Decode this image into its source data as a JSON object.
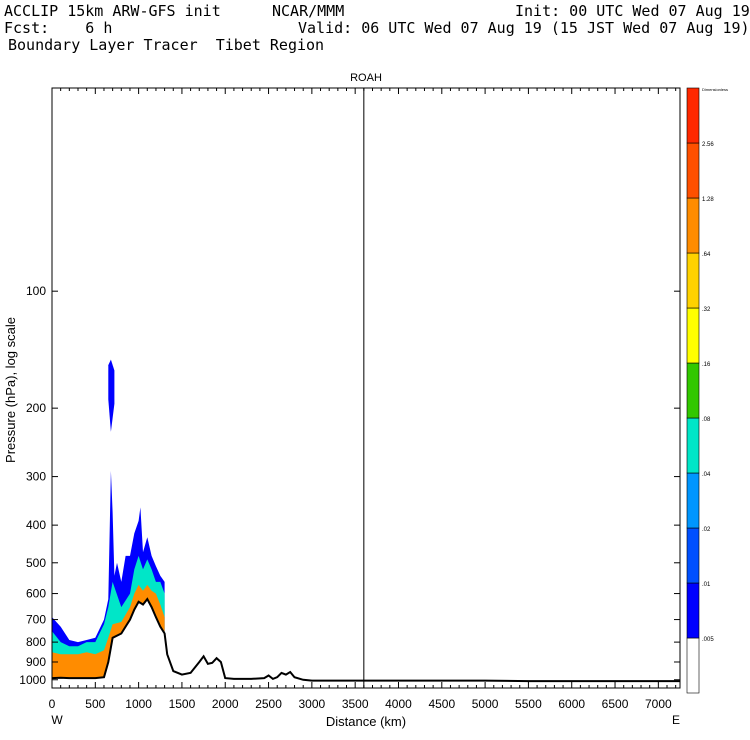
{
  "header": {
    "model_line": "ACCLIP 15km ARW-GFS init",
    "org": "NCAR/MMM",
    "init": "Init: 00 UTC Wed 07 Aug 19",
    "fcst_line": "Fcst:    6 h",
    "valid": "Valid: 06 UTC Wed 07 Aug 19 (15 JST Wed 07 Aug 19)",
    "product": "Boundary Layer Tracer  Tibet Region"
  },
  "chart_data": {
    "type": "area",
    "panel_label": "ROAH",
    "xlabel": "Distance (km)",
    "ylabel": "Pressure (hPa), log scale",
    "x_ticks": [
      0,
      500,
      1000,
      1500,
      2000,
      2500,
      3000,
      3500,
      4000,
      4500,
      5000,
      5500,
      6000,
      6500,
      7000
    ],
    "x_range": [
      0,
      7250
    ],
    "y_ticks": [
      100,
      200,
      300,
      400,
      500,
      600,
      700,
      800,
      900,
      1000
    ],
    "y_range": [
      30,
      1050
    ],
    "y_scale": "log",
    "left_end_label": "W",
    "right_end_label": "E",
    "vertical_line_x": 3600,
    "colorbar": {
      "top_label": "Dimensionless",
      "levels": [
        ".005",
        ".01",
        ".02",
        ".04",
        ".08",
        ".16",
        ".32",
        ".64",
        "1.28",
        "2.56"
      ],
      "colors": [
        "#ffffff",
        "#0000ff",
        "#0050ff",
        "#0096ff",
        "#00e6c8",
        "#32c800",
        "#ffff00",
        "#ffd200",
        "#ff8c00",
        "#ff5000",
        "#ff2800"
      ]
    },
    "terrain_surface_hpa": {
      "x": [
        0,
        100,
        200,
        300,
        400,
        500,
        600,
        650,
        700,
        800,
        900,
        950,
        1000,
        1050,
        1100,
        1150,
        1200,
        1250,
        1300,
        1330,
        1400,
        1500,
        1600,
        1700,
        1750,
        1800,
        1850,
        1900,
        1950,
        2000,
        2100,
        2200,
        2300,
        2450,
        2500,
        2550,
        2600,
        2650,
        2700,
        2750,
        2800,
        2900,
        3000,
        4000,
        5000,
        5500,
        6000,
        7000,
        7250
      ],
      "y": [
        990,
        988,
        990,
        990,
        990,
        990,
        985,
        900,
        780,
        760,
        700,
        660,
        630,
        640,
        620,
        650,
        690,
        730,
        760,
        860,
        950,
        970,
        960,
        900,
        870,
        910,
        905,
        880,
        900,
        990,
        995,
        995,
        995,
        990,
        975,
        995,
        985,
        960,
        970,
        955,
        985,
        1000,
        1005,
        1005,
        1005,
        1008,
        1008,
        1008,
        1008
      ]
    },
    "tracer_shading": [
      {
        "level": "2.56",
        "color": "#ff8c00",
        "x": [
          0,
          100,
          200,
          300,
          400,
          500,
          600,
          650,
          700,
          800,
          900,
          950,
          1000,
          1050,
          1100,
          1150,
          1200,
          1250,
          1300
        ],
        "upper_hpa": [
          850,
          860,
          860,
          860,
          850,
          860,
          840,
          780,
          720,
          710,
          650,
          600,
          570,
          590,
          570,
          590,
          600,
          640,
          690
        ]
      },
      {
        "level": ".16",
        "color": "#00e6c8",
        "x": [
          0,
          100,
          200,
          300,
          400,
          500,
          600,
          650,
          700,
          800,
          900,
          950,
          1000,
          1050,
          1100,
          1150,
          1200,
          1250,
          1300
        ],
        "upper_hpa": [
          750,
          800,
          820,
          820,
          800,
          800,
          720,
          650,
          560,
          650,
          600,
          520,
          480,
          520,
          490,
          520,
          560,
          560,
          600
        ]
      },
      {
        "level": ".01",
        "color": "#0000ff",
        "x": [
          0,
          100,
          200,
          300,
          400,
          500,
          600,
          650,
          680,
          700,
          720,
          750,
          800,
          850,
          900,
          950,
          1000,
          1020,
          1050,
          1100,
          1150,
          1200,
          1250,
          1300
        ],
        "upper_hpa": [
          690,
          730,
          790,
          800,
          790,
          780,
          700,
          620,
          290,
          370,
          540,
          500,
          560,
          480,
          480,
          420,
          390,
          360,
          470,
          430,
          480,
          510,
          540,
          560
        ]
      },
      {
        "level": ".01",
        "color": "#0000ff",
        "x": [
          650,
          680,
          720
        ],
        "upper_hpa": [
          155,
          150,
          160
        ],
        "lower_hpa": [
          190,
          230,
          195
        ]
      }
    ]
  }
}
